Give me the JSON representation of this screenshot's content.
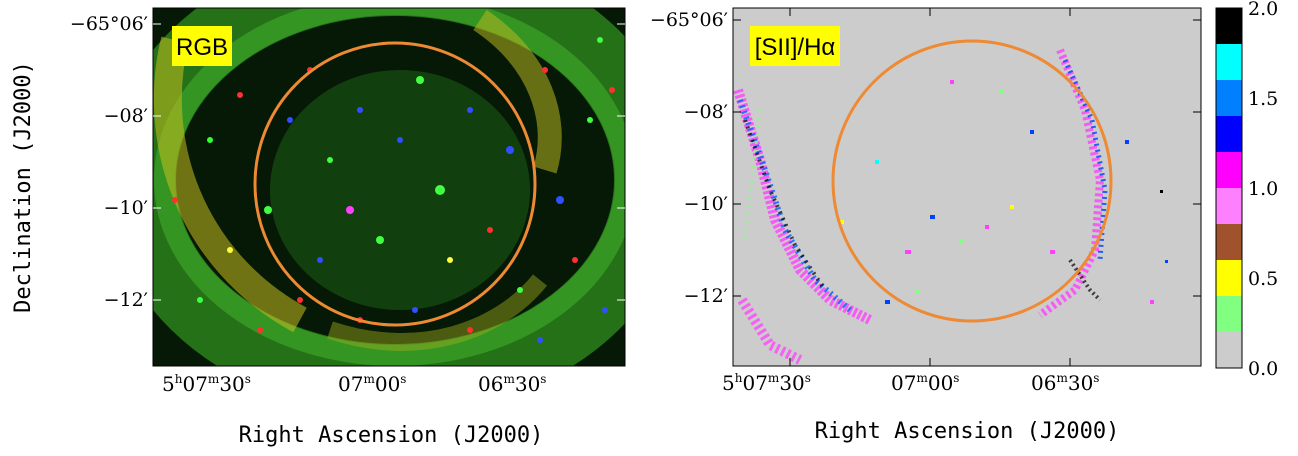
{
  "left_panel": {
    "label": "RGB",
    "ytick_labels": [
      "−65°06′",
      "−08′",
      "−10′",
      "−12′"
    ],
    "xtick_labels": [
      {
        "h": "5",
        "hs": "h",
        "m": "07",
        "ms": "m",
        "s": "30",
        "ss": "s"
      },
      {
        "h": "",
        "hs": "",
        "m": "07",
        "ms": "m",
        "s": "00",
        "ss": "s"
      },
      {
        "h": "",
        "hs": "",
        "m": "06",
        "ms": "m",
        "s": "30",
        "ss": "s"
      }
    ]
  },
  "right_panel": {
    "label": "[SII]/Hα",
    "ytick_labels": [
      "−65°06′",
      "−08′",
      "−10′",
      "−12′"
    ],
    "xtick_labels": [
      {
        "h": "5",
        "hs": "h",
        "m": "07",
        "ms": "m",
        "s": "30",
        "ss": "s"
      },
      {
        "h": "",
        "hs": "",
        "m": "07",
        "ms": "m",
        "s": "00",
        "ss": "s"
      },
      {
        "h": "",
        "hs": "",
        "m": "06",
        "ms": "m",
        "s": "30",
        "ss": "s"
      }
    ]
  },
  "axis_labels": {
    "ylabel": "Declination (J2000)",
    "xlabel": "Right Ascension (J2000)"
  },
  "colorbar": {
    "tick_labels": [
      "2.0",
      "1.5",
      "1.0",
      "0.5",
      "0.0"
    ],
    "colors": [
      "#000000",
      "#00ffff",
      "#0080ff",
      "#0000ff",
      "#ff00ff",
      "#ff80ff",
      "#a0522d",
      "#ffff00",
      "#80ff80",
      "#cccccc"
    ]
  },
  "colors": {
    "circle": "#ed8a33",
    "label_bg": "#ffff00",
    "ratio_background": "#cccccc"
  }
}
